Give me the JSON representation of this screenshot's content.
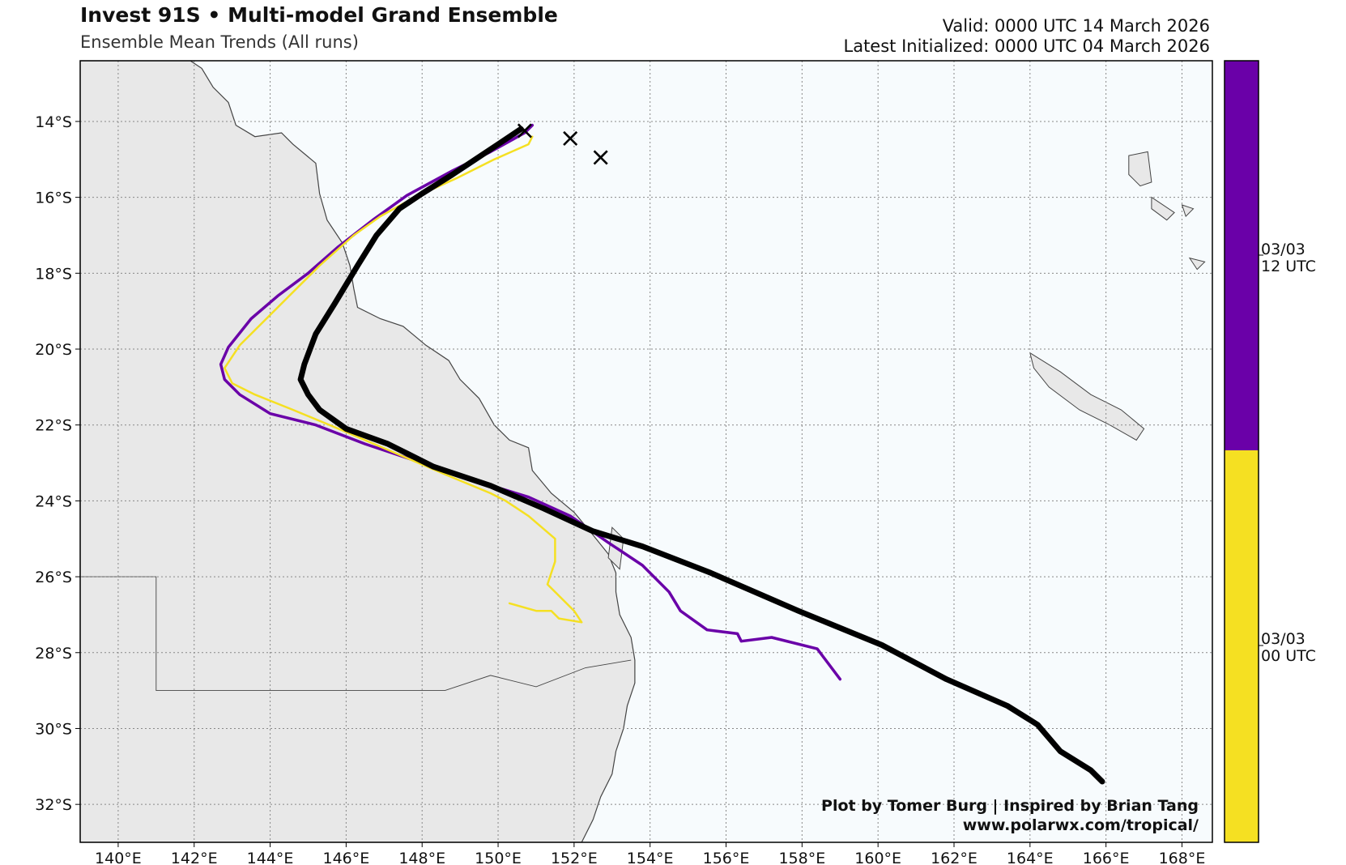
{
  "header": {
    "title": "Invest 91S • Multi-model Grand Ensemble",
    "subtitle": "Ensemble Mean Trends (All runs)",
    "valid": "Valid: 0000 UTC 14 March 2026",
    "latest": "Latest Initialized: 0000 UTC 04 March 2026"
  },
  "credits": {
    "line1": "Plot by Tomer Burg | Inspired by Brian Tang",
    "line2": "www.polarwx.com/tropical/"
  },
  "colors": {
    "land": "#e8e8e8",
    "ocean": "#f7fbfd",
    "coast": "#444444",
    "grid": "#888888",
    "run_00utc": "#f5e022",
    "run_12utc": "#6a00a8",
    "mean": "#000000"
  },
  "map": {
    "lon_range": [
      139.0,
      168.8
    ],
    "lat_range": [
      -33.0,
      -12.4
    ],
    "lon_ticks": [
      140,
      142,
      144,
      146,
      148,
      150,
      152,
      154,
      156,
      158,
      160,
      162,
      164,
      166,
      168
    ],
    "lon_tick_labels": [
      "140°E",
      "142°E",
      "144°E",
      "146°E",
      "148°E",
      "150°E",
      "152°E",
      "154°E",
      "156°E",
      "158°E",
      "160°E",
      "162°E",
      "164°E",
      "166°E",
      "168°E"
    ],
    "lat_ticks": [
      -14,
      -16,
      -18,
      -20,
      -22,
      -24,
      -26,
      -28,
      -30,
      -32
    ],
    "lat_tick_labels": [
      "14°S",
      "16°S",
      "18°S",
      "20°S",
      "22°S",
      "24°S",
      "26°S",
      "28°S",
      "30°S",
      "32°S"
    ],
    "grid": true
  },
  "colorbar": {
    "segments": [
      {
        "label_line1": "03/03",
        "label_line2": "12 UTC",
        "color": "#6a00a8"
      },
      {
        "label_line1": "03/03",
        "label_line2": "00 UTC",
        "color": "#f5e022"
      }
    ]
  },
  "tracks": [
    {
      "run": "03/03 12 UTC",
      "color": "#6a00a8",
      "points": [
        [
          150.9,
          -14.1
        ],
        [
          150.7,
          -14.3
        ],
        [
          149.8,
          -14.8
        ],
        [
          148.8,
          -15.3
        ],
        [
          147.6,
          -15.95
        ],
        [
          146.7,
          -16.6
        ],
        [
          145.8,
          -17.3
        ],
        [
          145.0,
          -18.0
        ],
        [
          144.2,
          -18.6
        ],
        [
          143.5,
          -19.2
        ],
        [
          142.9,
          -19.95
        ],
        [
          142.7,
          -20.4
        ],
        [
          142.8,
          -20.8
        ],
        [
          143.2,
          -21.2
        ],
        [
          144.0,
          -21.7
        ],
        [
          145.2,
          -22.0
        ],
        [
          146.5,
          -22.5
        ],
        [
          148.0,
          -23.0
        ],
        [
          149.5,
          -23.5
        ],
        [
          150.8,
          -23.9
        ],
        [
          151.9,
          -24.4
        ],
        [
          152.9,
          -25.1
        ],
        [
          153.8,
          -25.7
        ],
        [
          154.5,
          -26.4
        ],
        [
          154.8,
          -26.9
        ],
        [
          155.5,
          -27.4
        ],
        [
          156.3,
          -27.5
        ],
        [
          156.4,
          -27.7
        ],
        [
          157.2,
          -27.6
        ],
        [
          158.4,
          -27.9
        ],
        [
          158.7,
          -28.3
        ],
        [
          159.0,
          -28.7
        ]
      ]
    },
    {
      "run": "03/03 00 UTC",
      "color": "#f5e022",
      "points": [
        [
          150.9,
          -14.4
        ],
        [
          150.8,
          -14.6
        ],
        [
          149.9,
          -15.0
        ],
        [
          148.9,
          -15.5
        ],
        [
          147.8,
          -16.0
        ],
        [
          146.9,
          -16.5
        ],
        [
          146.2,
          -17.0
        ],
        [
          145.3,
          -17.8
        ],
        [
          144.6,
          -18.5
        ],
        [
          143.9,
          -19.2
        ],
        [
          143.2,
          -19.9
        ],
        [
          142.8,
          -20.5
        ],
        [
          143.0,
          -20.9
        ],
        [
          143.6,
          -21.2
        ],
        [
          144.6,
          -21.6
        ],
        [
          145.8,
          -22.1
        ],
        [
          147.2,
          -22.7
        ],
        [
          148.6,
          -23.3
        ],
        [
          149.8,
          -23.8
        ],
        [
          150.2,
          -24.0
        ],
        [
          150.8,
          -24.4
        ],
        [
          151.5,
          -25.0
        ],
        [
          151.5,
          -25.6
        ],
        [
          151.3,
          -26.2
        ],
        [
          151.6,
          -26.5
        ],
        [
          152.0,
          -26.9
        ],
        [
          152.2,
          -27.2
        ],
        [
          151.6,
          -27.1
        ],
        [
          151.4,
          -26.9
        ],
        [
          151.0,
          -26.9
        ],
        [
          150.3,
          -26.7
        ]
      ]
    },
    {
      "run": "mean",
      "color": "#000000",
      "points": [
        [
          150.6,
          -14.2
        ],
        [
          150.0,
          -14.6
        ],
        [
          149.4,
          -15.0
        ],
        [
          148.8,
          -15.4
        ],
        [
          148.0,
          -15.9
        ],
        [
          147.4,
          -16.3
        ],
        [
          146.8,
          -17.0
        ],
        [
          146.3,
          -17.8
        ],
        [
          145.7,
          -18.8
        ],
        [
          145.2,
          -19.6
        ],
        [
          144.9,
          -20.4
        ],
        [
          144.8,
          -20.8
        ],
        [
          145.0,
          -21.2
        ],
        [
          145.3,
          -21.6
        ],
        [
          146.0,
          -22.1
        ],
        [
          147.1,
          -22.5
        ],
        [
          148.3,
          -23.1
        ],
        [
          149.8,
          -23.6
        ],
        [
          151.2,
          -24.2
        ],
        [
          152.5,
          -24.8
        ],
        [
          153.8,
          -25.2
        ],
        [
          155.6,
          -25.9
        ],
        [
          157.9,
          -26.9
        ],
        [
          160.1,
          -27.8
        ],
        [
          161.8,
          -28.7
        ],
        [
          163.4,
          -29.4
        ],
        [
          164.2,
          -29.9
        ],
        [
          164.8,
          -30.6
        ],
        [
          165.6,
          -31.1
        ],
        [
          165.9,
          -31.4
        ]
      ]
    }
  ],
  "markers": [
    {
      "symbol": "×",
      "lon": 150.7,
      "lat": -14.25
    },
    {
      "symbol": "×",
      "lon": 151.9,
      "lat": -14.45
    },
    {
      "symbol": "×",
      "lon": 152.7,
      "lat": -14.95
    }
  ]
}
